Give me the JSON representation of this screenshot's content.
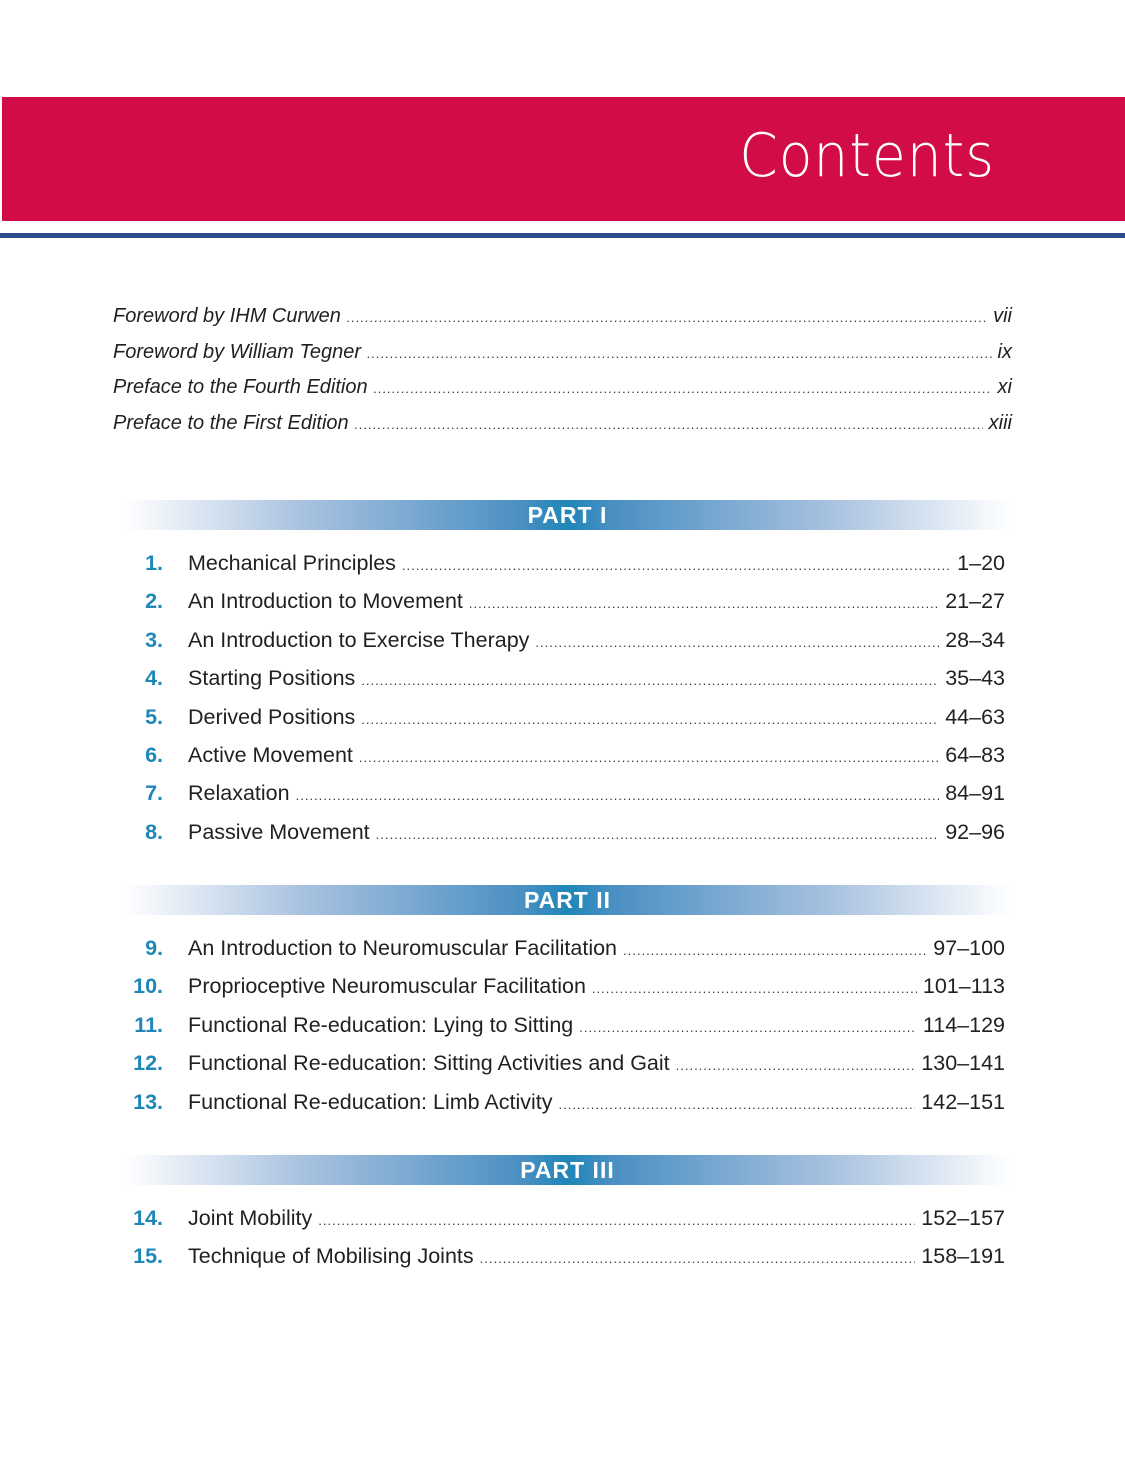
{
  "header": {
    "title": "Contents",
    "color": "#d20c47",
    "rule_color": "#2e4a8e"
  },
  "front_matter": [
    {
      "title": "Foreword by IHM Curwen",
      "page": "vii"
    },
    {
      "title": "Foreword by William Tegner",
      "page": "ix"
    },
    {
      "title": "Preface to the Fourth Edition",
      "page": "xi"
    },
    {
      "title": "Preface to the First Edition",
      "page": "xiii"
    }
  ],
  "parts": [
    {
      "label": "PART I",
      "chapters": [
        {
          "num": "1.",
          "title": "Mechanical Principles",
          "pages": "1–20"
        },
        {
          "num": "2.",
          "title": "An Introduction to Movement",
          "pages": "21–27"
        },
        {
          "num": "3.",
          "title": "An Introduction to Exercise Therapy",
          "pages": "28–34"
        },
        {
          "num": "4.",
          "title": "Starting Positions",
          "pages": "35–43"
        },
        {
          "num": "5.",
          "title": "Derived Positions",
          "pages": "44–63"
        },
        {
          "num": "6.",
          "title": "Active Movement",
          "pages": "64–83"
        },
        {
          "num": "7.",
          "title": "Relaxation",
          "pages": "84–91"
        },
        {
          "num": "8.",
          "title": "Passive Movement",
          "pages": "92–96"
        }
      ]
    },
    {
      "label": "PART II",
      "chapters": [
        {
          "num": "9.",
          "title": "An Introduction to Neuromuscular Facilitation",
          "pages": "97–100"
        },
        {
          "num": "10.",
          "title": "Proprioceptive Neuromuscular Facilitation",
          "pages": "101–113"
        },
        {
          "num": "11.",
          "title": "Functional Re-education: Lying to Sitting",
          "pages": "114–129"
        },
        {
          "num": "12.",
          "title": "Functional Re-education: Sitting Activities and Gait",
          "pages": "130–141"
        },
        {
          "num": "13.",
          "title": "Functional Re-education: Limb Activity",
          "pages": "142–151"
        }
      ]
    },
    {
      "label": "PART III",
      "chapters": [
        {
          "num": "14.",
          "title": "Joint Mobility",
          "pages": "152–157"
        },
        {
          "num": "15.",
          "title": "Technique of Mobilising Joints",
          "pages": "158–191"
        }
      ]
    }
  ]
}
